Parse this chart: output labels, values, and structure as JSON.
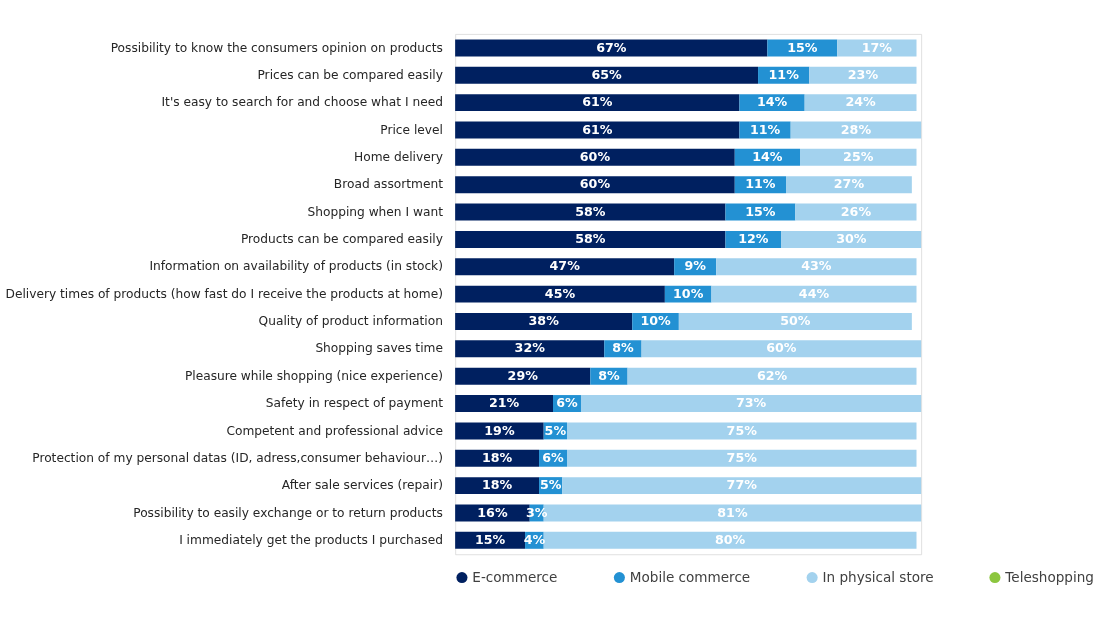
{
  "chart_data": {
    "type": "bar",
    "orientation": "horizontal",
    "stacked": true,
    "legend": "bottom",
    "categories": [
      "Possibility to know the consumers opinion on products",
      "Prices can be compared easily",
      "It's easy to search for and choose what I need",
      "Price level",
      "Home delivery",
      "Broad assortment",
      "Shopping when I want",
      "Products can be compared easily",
      "Information on availability of products (in stock)",
      "Delivery times of products (how fast do I receive the products at home)",
      "Quality of product information",
      "Shopping saves time",
      "Pleasure while shopping (nice experience)",
      "Safety in respect of payment",
      "Competent and professional advice",
      "Protection of my personal datas (ID, adress,consumer behaviour…)",
      "After sale services (repair)",
      "Possibility to easily exchange or to return products",
      "I immediately get the products I purchased"
    ],
    "series": [
      {
        "name": "E-commerce",
        "color": "#002060",
        "values": [
          67,
          65,
          61,
          61,
          60,
          60,
          58,
          58,
          47,
          45,
          38,
          32,
          29,
          21,
          19,
          18,
          18,
          16,
          15
        ],
        "value_labels": [
          "67%",
          "65%",
          "61%",
          "61%",
          "60%",
          "60%",
          "58%",
          "58%",
          "47%",
          "45%",
          "38%",
          "32%",
          "29%",
          "21%",
          "19%",
          "18%",
          "18%",
          "16%",
          "15%"
        ]
      },
      {
        "name": "Mobile commerce",
        "color": "#2391d3",
        "values": [
          15,
          11,
          14,
          11,
          14,
          11,
          15,
          12,
          9,
          10,
          10,
          8,
          8,
          6,
          5,
          6,
          5,
          3,
          4
        ],
        "value_labels": [
          "15%",
          "11%",
          "14%",
          "11%",
          "14%",
          "11%",
          "15%",
          "12%",
          "9%",
          "10%",
          "10%",
          "8%",
          "8%",
          "6%",
          "5%",
          "6%",
          "5%",
          "3%",
          "4%"
        ]
      },
      {
        "name": "In physical store",
        "color": "#a3d2ee",
        "values": [
          17,
          23,
          24,
          28,
          25,
          27,
          26,
          30,
          43,
          44,
          50,
          60,
          62,
          73,
          75,
          75,
          77,
          81,
          80
        ],
        "value_labels": [
          "17%",
          "23%",
          "24%",
          "28%",
          "25%",
          "27%",
          "26%",
          "30%",
          "43%",
          "44%",
          "50%",
          "60%",
          "62%",
          "73%",
          "75%",
          "75%",
          "77%",
          "81%",
          "80%"
        ]
      },
      {
        "name": "Teleshopping",
        "color": "#8cc63f",
        "values": [
          null,
          null,
          null,
          null,
          null,
          null,
          null,
          null,
          null,
          null,
          null,
          null,
          null,
          null,
          null,
          null,
          null,
          null,
          null
        ]
      }
    ]
  }
}
